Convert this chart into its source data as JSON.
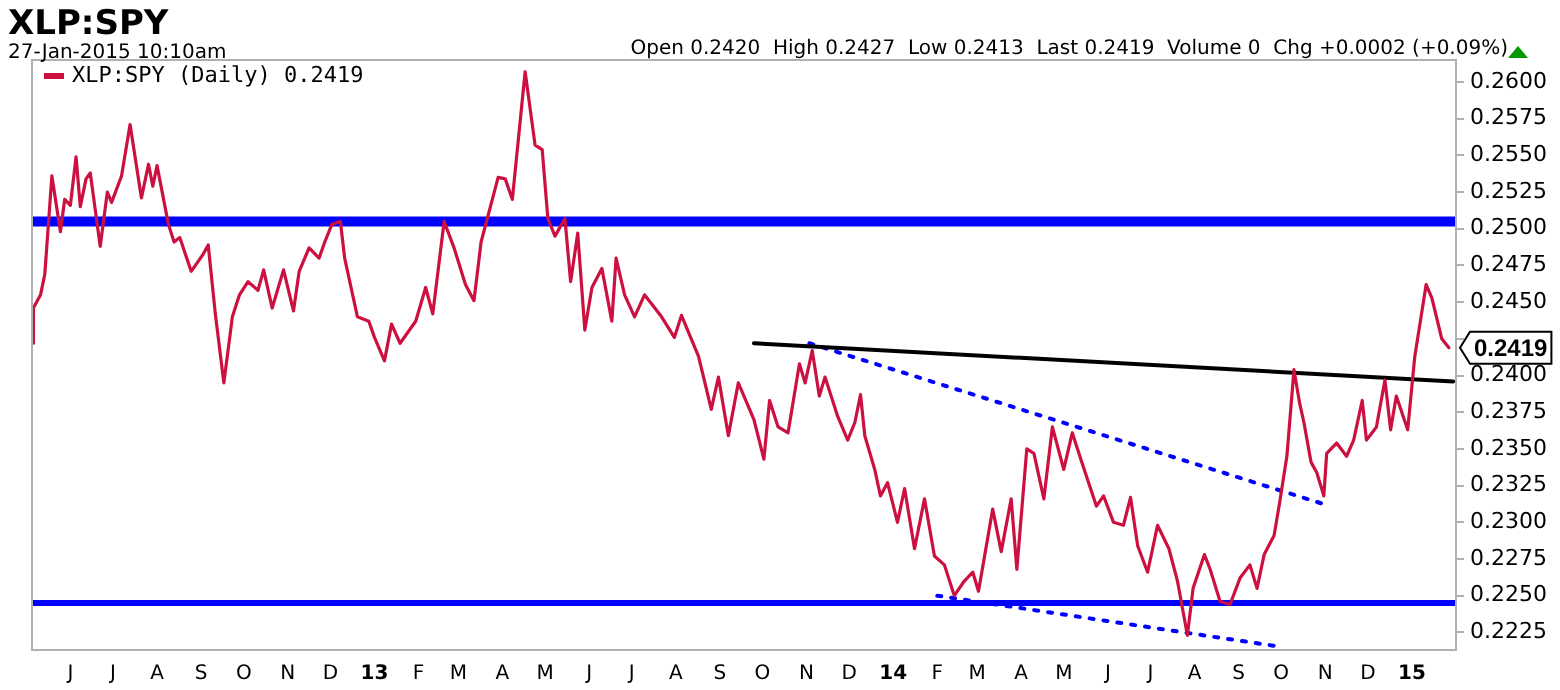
{
  "chart_data": {
    "type": "line",
    "title": "XLP:SPY",
    "subtitle": "27-Jan-2015 10:10am",
    "annotations": [
      "Open 0.2420  High 0.2427  Low 0.2413  Last 0.2419  Volume 0  Chg +0.0002 (+0.09%)",
      {
        "text": "0.2419",
        "x": "2015-01-27",
        "y": 0.2419
      }
    ],
    "xlim": [
      "2012-05-05",
      "2015-02-01"
    ],
    "xticks": [
      {
        "value": "2012-06-01",
        "label": "J"
      },
      {
        "value": "2012-07-01",
        "label": "J"
      },
      {
        "value": "2012-08-01",
        "label": "A"
      },
      {
        "value": "2012-09-01",
        "label": "S"
      },
      {
        "value": "2012-10-01",
        "label": "O"
      },
      {
        "value": "2012-11-01",
        "label": "N"
      },
      {
        "value": "2012-12-01",
        "label": "D"
      },
      {
        "value": "2013-01-01",
        "label": "13"
      },
      {
        "value": "2013-02-01",
        "label": "F"
      },
      {
        "value": "2013-03-01",
        "label": "M"
      },
      {
        "value": "2013-04-01",
        "label": "A"
      },
      {
        "value": "2013-05-01",
        "label": "M"
      },
      {
        "value": "2013-06-01",
        "label": "J"
      },
      {
        "value": "2013-07-01",
        "label": "J"
      },
      {
        "value": "2013-08-01",
        "label": "A"
      },
      {
        "value": "2013-09-01",
        "label": "S"
      },
      {
        "value": "2013-10-01",
        "label": "O"
      },
      {
        "value": "2013-11-01",
        "label": "N"
      },
      {
        "value": "2013-12-01",
        "label": "D"
      },
      {
        "value": "2014-01-01",
        "label": "14"
      },
      {
        "value": "2014-02-01",
        "label": "F"
      },
      {
        "value": "2014-03-01",
        "label": "M"
      },
      {
        "value": "2014-04-01",
        "label": "A"
      },
      {
        "value": "2014-05-01",
        "label": "M"
      },
      {
        "value": "2014-06-01",
        "label": "J"
      },
      {
        "value": "2014-07-01",
        "label": "J"
      },
      {
        "value": "2014-08-01",
        "label": "A"
      },
      {
        "value": "2014-09-01",
        "label": "S"
      },
      {
        "value": "2014-10-01",
        "label": "O"
      },
      {
        "value": "2014-11-01",
        "label": "N"
      },
      {
        "value": "2014-12-01",
        "label": "D"
      },
      {
        "value": "2015-01-01",
        "label": "15"
      }
    ],
    "ylim": [
      0.2213,
      0.2615
    ],
    "yticks": [
      {
        "value": 0.2225,
        "label": "0.2225"
      },
      {
        "value": 0.225,
        "label": "0.2250"
      },
      {
        "value": 0.2275,
        "label": "0.2275"
      },
      {
        "value": 0.23,
        "label": "0.2300"
      },
      {
        "value": 0.2325,
        "label": "0.2325"
      },
      {
        "value": 0.235,
        "label": "0.2350"
      },
      {
        "value": 0.2375,
        "label": "0.2375"
      },
      {
        "value": 0.24,
        "label": "0.2400"
      },
      {
        "value": 0.2425,
        "label": null
      },
      {
        "value": 0.245,
        "label": "0.2450"
      },
      {
        "value": 0.2475,
        "label": "0.2475"
      },
      {
        "value": 0.25,
        "label": "0.2500"
      },
      {
        "value": 0.2525,
        "label": "0.2525"
      },
      {
        "value": 0.255,
        "label": "0.2550"
      },
      {
        "value": 0.2575,
        "label": "0.2575"
      },
      {
        "value": 0.26,
        "label": "0.2600"
      }
    ],
    "grid": false,
    "legend": "top left",
    "marker": "none",
    "ref_lines": [
      {
        "axis": "y",
        "value": 0.2505,
        "color": "#0000ff"
      },
      {
        "axis": "y",
        "value": 0.2245,
        "color": "#0000ff"
      }
    ],
    "series": [
      {
        "name": "XLP:SPY (Daily) 0.2419",
        "color": "#cc1040",
        "line_style": "solid",
        "x": [
          "2012-05-05",
          "2012-05-06",
          "2012-05-11",
          "2012-05-14",
          "2012-05-19",
          "2012-05-25",
          "2012-05-28",
          "2012-06-01",
          "2012-06-05",
          "2012-06-08",
          "2012-06-12",
          "2012-06-15",
          "2012-06-22",
          "2012-06-27",
          "2012-06-30",
          "2012-07-07",
          "2012-07-13",
          "2012-07-21",
          "2012-07-26",
          "2012-07-29",
          "2012-08-01",
          "2012-08-09",
          "2012-08-13",
          "2012-08-17",
          "2012-08-25",
          "2012-09-02",
          "2012-09-06",
          "2012-09-11",
          "2012-09-17",
          "2012-09-23",
          "2012-09-28",
          "2012-10-04",
          "2012-10-11",
          "2012-10-15",
          "2012-10-21",
          "2012-10-29",
          "2012-11-05",
          "2012-11-09",
          "2012-11-16",
          "2012-11-23",
          "2012-11-27",
          "2012-12-02",
          "2012-12-08",
          "2012-12-11",
          "2012-12-20",
          "2012-12-28",
          "2013-01-01",
          "2013-01-08",
          "2013-01-13",
          "2013-01-19",
          "2013-01-30",
          "2013-02-06",
          "2013-02-11",
          "2013-02-19",
          "2013-02-26",
          "2013-03-06",
          "2013-03-12",
          "2013-03-17",
          "2013-03-29",
          "2013-04-03",
          "2013-04-08",
          "2013-04-17",
          "2013-04-24",
          "2013-04-29",
          "2013-05-03",
          "2013-05-08",
          "2013-05-15",
          "2013-05-19",
          "2013-05-24",
          "2013-05-29",
          "2013-06-03",
          "2013-06-10",
          "2013-06-17",
          "2013-06-20",
          "2013-06-26",
          "2013-07-03",
          "2013-07-10",
          "2013-07-22",
          "2013-07-31",
          "2013-08-05",
          "2013-08-17",
          "2013-08-26",
          "2013-08-31",
          "2013-09-07",
          "2013-09-14",
          "2013-09-25",
          "2013-10-02",
          "2013-10-06",
          "2013-10-12",
          "2013-10-19",
          "2013-10-27",
          "2013-10-31",
          "2013-11-05",
          "2013-11-10",
          "2013-11-14",
          "2013-11-23",
          "2013-11-30",
          "2013-12-05",
          "2013-12-09",
          "2013-12-12",
          "2013-12-19",
          "2013-12-23",
          "2013-12-28",
          "2014-01-04",
          "2014-01-09",
          "2014-01-16",
          "2014-01-23",
          "2014-01-30",
          "2014-02-06",
          "2014-02-13",
          "2014-02-20",
          "2014-02-26",
          "2014-03-02",
          "2014-03-12",
          "2014-03-18",
          "2014-03-25",
          "2014-03-29",
          "2014-04-05",
          "2014-04-10",
          "2014-04-17",
          "2014-04-23",
          "2014-05-01",
          "2014-05-07",
          "2014-05-13",
          "2014-05-24",
          "2014-05-29",
          "2014-06-05",
          "2014-06-12",
          "2014-06-17",
          "2014-06-22",
          "2014-06-29",
          "2014-07-06",
          "2014-07-14",
          "2014-07-20",
          "2014-07-27",
          "2014-07-31",
          "2014-08-08",
          "2014-08-12",
          "2014-08-19",
          "2014-08-26",
          "2014-09-02",
          "2014-09-09",
          "2014-09-14",
          "2014-09-19",
          "2014-09-26",
          "2014-09-30",
          "2014-10-05",
          "2014-10-10",
          "2014-10-14",
          "2014-10-17",
          "2014-10-22",
          "2014-10-26",
          "2014-10-31",
          "2014-11-02",
          "2014-11-09",
          "2014-11-16",
          "2014-11-21",
          "2014-11-27",
          "2014-11-30",
          "2014-12-07",
          "2014-12-13",
          "2014-12-17",
          "2014-12-21",
          "2014-12-29",
          "2015-01-03",
          "2015-01-11",
          "2015-01-15",
          "2015-01-22",
          "2015-01-27"
        ],
        "values": [
          0.2422,
          0.2446,
          0.2455,
          0.2469,
          0.2536,
          0.2498,
          0.252,
          0.2516,
          0.2549,
          0.2515,
          0.2534,
          0.2538,
          0.2488,
          0.2525,
          0.2518,
          0.2536,
          0.2571,
          0.2521,
          0.2544,
          0.2529,
          0.2543,
          0.2503,
          0.2491,
          0.2494,
          0.2471,
          0.2482,
          0.2489,
          0.2442,
          0.2395,
          0.244,
          0.2455,
          0.2464,
          0.2458,
          0.2472,
          0.2446,
          0.2472,
          0.2444,
          0.2471,
          0.2487,
          0.248,
          0.2491,
          0.2503,
          0.2505,
          0.248,
          0.244,
          0.2437,
          0.2426,
          0.241,
          0.2435,
          0.2422,
          0.2437,
          0.246,
          0.2442,
          0.2505,
          0.2487,
          0.2462,
          0.2451,
          0.2491,
          0.2535,
          0.2534,
          0.252,
          0.2607,
          0.2557,
          0.2554,
          0.2507,
          0.2495,
          0.2507,
          0.2464,
          0.2497,
          0.2431,
          0.246,
          0.2473,
          0.2437,
          0.248,
          0.2455,
          0.244,
          0.2455,
          0.244,
          0.2426,
          0.2441,
          0.2413,
          0.2377,
          0.2399,
          0.2359,
          0.2395,
          0.237,
          0.2343,
          0.2383,
          0.2365,
          0.2361,
          0.2408,
          0.2395,
          0.2417,
          0.2386,
          0.2399,
          0.2372,
          0.2356,
          0.2368,
          0.2387,
          0.2359,
          0.2336,
          0.2318,
          0.2327,
          0.23,
          0.2323,
          0.2282,
          0.2316,
          0.2277,
          0.2271,
          0.225,
          0.226,
          0.2266,
          0.2253,
          0.2309,
          0.228,
          0.2316,
          0.2268,
          0.235,
          0.2347,
          0.2316,
          0.2365,
          0.2336,
          0.2361,
          0.2343,
          0.2311,
          0.2318,
          0.23,
          0.2298,
          0.2317,
          0.2284,
          0.2266,
          0.2298,
          0.2282,
          0.226,
          0.2223,
          0.2255,
          0.2278,
          0.2268,
          0.2246,
          0.2244,
          0.2262,
          0.2271,
          0.2255,
          0.2278,
          0.2291,
          0.2314,
          0.2345,
          0.2404,
          0.2381,
          0.2368,
          0.2341,
          0.2334,
          0.2318,
          0.2347,
          0.2354,
          0.2345,
          0.2356,
          0.2383,
          0.2356,
          0.2365,
          0.2397,
          0.2363,
          0.2386,
          0.2363,
          0.2413,
          0.2462,
          0.2453,
          0.2425,
          0.2419
        ]
      },
      {
        "type": "line",
        "color": "#000000",
        "line_style": "solid",
        "x": [
          "2013-09-25",
          "2015-01-30"
        ],
        "values": [
          0.2422,
          0.2396
        ]
      },
      {
        "type": "line",
        "color": "#0000ff",
        "line_style": "dotted",
        "x": [
          "2013-11-03",
          "2014-10-29"
        ],
        "values": [
          0.2422,
          0.2313
        ]
      },
      {
        "type": "line",
        "color": "#0000ff",
        "line_style": "dotted",
        "x": [
          "2014-02-01",
          "2014-10-02"
        ],
        "values": [
          0.225,
          0.2215
        ]
      }
    ]
  }
}
